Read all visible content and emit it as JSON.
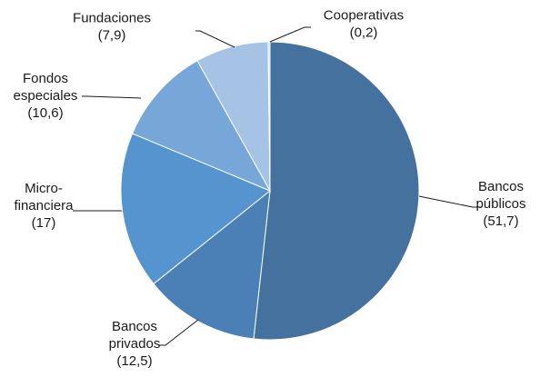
{
  "chart_data": {
    "type": "pie",
    "slices": [
      {
        "name": "Bancos públicos",
        "lines": [
          "Bancos",
          "públicos",
          "(51,7)"
        ],
        "value": 51.7,
        "color": "#44719e"
      },
      {
        "name": "Bancos privados",
        "lines": [
          "Bancos",
          "privados",
          "(12,5)"
        ],
        "value": 12.5,
        "color": "#4a80b6"
      },
      {
        "name": "Micro-financiera",
        "lines": [
          "Micro-",
          "financiera",
          "(17)"
        ],
        "value": 17,
        "color": "#5594cf"
      },
      {
        "name": "Fondos especiales",
        "lines": [
          "Fondos",
          "especiales",
          "(10,6)"
        ],
        "value": 10.6,
        "color": "#77a6d9"
      },
      {
        "name": "Fundaciones",
        "lines": [
          "Fundaciones",
          "(7,9)"
        ],
        "value": 7.9,
        "color": "#a6c2e5"
      },
      {
        "name": "Cooperativas",
        "lines": [
          "Cooperativas",
          "(0,2)"
        ],
        "value": 0.2,
        "color": "#c8d9ee"
      }
    ],
    "start_angle": "12 o'clock",
    "direction": "clockwise",
    "legend": "none",
    "data_labels": "outside with leader lines"
  }
}
